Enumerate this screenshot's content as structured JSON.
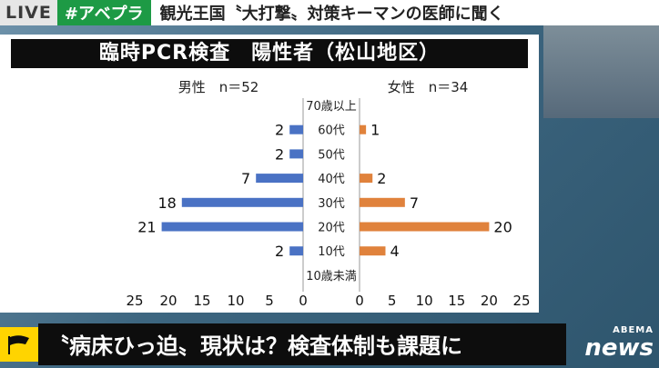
{
  "ticker": {
    "live_label": "LIVE",
    "hashtag": "#アベプラ",
    "headline": "観光王国〝大打撃〟対策キーマンの医師に聞く"
  },
  "chart": {
    "title": "臨時PCR検査　陽性者（松山地区）",
    "male_label": "男性　n＝52",
    "female_label": "女性　n＝34"
  },
  "chart_data": {
    "type": "bar",
    "title": "臨時PCR検査　陽性者（松山地区）",
    "categories": [
      "70歳以上",
      "60代",
      "50代",
      "40代",
      "30代",
      "20代",
      "10代",
      "10歳未満"
    ],
    "series": [
      {
        "name": "男性　n＝52",
        "values": [
          0,
          2,
          2,
          7,
          18,
          21,
          2,
          0
        ],
        "color": "#4a72c4"
      },
      {
        "name": "女性　n＝34",
        "values": [
          0,
          1,
          0,
          2,
          7,
          20,
          4,
          0
        ],
        "color": "#e0823c"
      }
    ],
    "data_labels": {
      "male": [
        "",
        "2",
        "2",
        "7",
        "18",
        "21",
        "2",
        ""
      ],
      "female": [
        "",
        "1",
        "",
        "2",
        "7",
        "20",
        "4",
        ""
      ]
    },
    "xlim": [
      0,
      25
    ],
    "ticks_left": [
      "25",
      "20",
      "15",
      "10",
      "5",
      "0"
    ],
    "ticks_right": [
      "0",
      "5",
      "10",
      "15",
      "20",
      "25"
    ],
    "orientation": "horizontal-butterfly"
  },
  "bottom": {
    "caption": "〝病床ひっ迫〟現状は？検査体制も課題に"
  },
  "brand": {
    "line1": "ABEMA",
    "line2": "news"
  },
  "colors": {
    "hashtag_green": "#1d9a45",
    "male_bar": "#4a72c4",
    "female_bar": "#e0823c",
    "flag_yellow": "#ffd400"
  }
}
